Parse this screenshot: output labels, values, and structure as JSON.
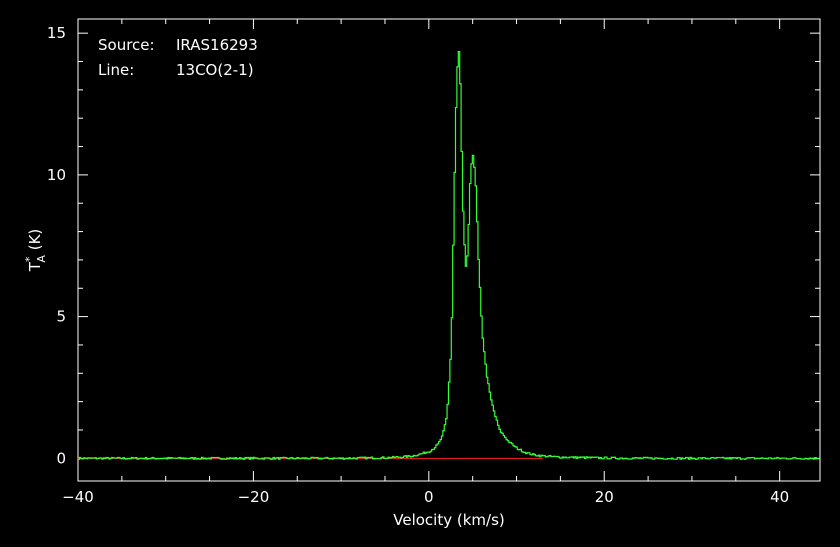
{
  "chart_data": {
    "type": "line",
    "step": true,
    "xlabel": "Velocity (km/s)",
    "ylabel": {
      "main": "T",
      "sup": "*",
      "sub": "A",
      "rest": " (K)"
    },
    "annotations": [
      {
        "key": "Source:",
        "value": "IRAS16293"
      },
      {
        "key": "Line:",
        "value": "13CO(2-1)"
      }
    ],
    "xlim": [
      -40,
      44.6
    ],
    "ylim": [
      -0.8,
      15.5
    ],
    "xticks": [
      -40,
      -20,
      0,
      20,
      40
    ],
    "xtick_labels": [
      "−40",
      "−20",
      "0",
      "20",
      "40"
    ],
    "yticks": [
      0,
      5,
      10,
      15
    ],
    "ytick_labels": [
      "0",
      "5",
      "10",
      "15"
    ],
    "xminor_step": 5,
    "yminor_step": 1,
    "baseline": {
      "y": 0,
      "x_range": [
        -40,
        13
      ],
      "color": "#ff2020"
    },
    "series": [
      {
        "color": "#33ff33",
        "points": [
          [
            -40,
            0.0
          ],
          [
            -35,
            0.0
          ],
          [
            -30,
            0.0
          ],
          [
            -25,
            0.0
          ],
          [
            -20,
            0.0
          ],
          [
            -15,
            0.0
          ],
          [
            -10,
            0.0
          ],
          [
            -5,
            0.02
          ],
          [
            -3,
            0.05
          ],
          [
            -2,
            0.08
          ],
          [
            -1,
            0.15
          ],
          [
            0,
            0.25
          ],
          [
            0.5,
            0.35
          ],
          [
            1,
            0.5
          ],
          [
            1.5,
            0.8
          ],
          [
            2,
            1.5
          ],
          [
            2.5,
            4.0
          ],
          [
            3.0,
            12.0
          ],
          [
            3.3,
            14.7
          ],
          [
            3.5,
            13.5
          ],
          [
            3.8,
            9.0
          ],
          [
            4.0,
            7.5
          ],
          [
            4.2,
            6.6
          ],
          [
            4.4,
            7.5
          ],
          [
            4.7,
            10.2
          ],
          [
            5.0,
            10.8
          ],
          [
            5.3,
            9.5
          ],
          [
            5.6,
            7.0
          ],
          [
            6.0,
            4.5
          ],
          [
            6.5,
            3.0
          ],
          [
            7.0,
            2.1
          ],
          [
            7.5,
            1.5
          ],
          [
            8.0,
            1.0
          ],
          [
            9.0,
            0.6
          ],
          [
            10,
            0.35
          ],
          [
            11,
            0.2
          ],
          [
            12,
            0.12
          ],
          [
            13,
            0.08
          ],
          [
            15,
            0.04
          ],
          [
            20,
            0.01
          ],
          [
            25,
            0.0
          ],
          [
            30,
            0.0
          ],
          [
            35,
            0.0
          ],
          [
            40,
            0.0
          ],
          [
            44.6,
            0.0
          ]
        ]
      }
    ]
  }
}
